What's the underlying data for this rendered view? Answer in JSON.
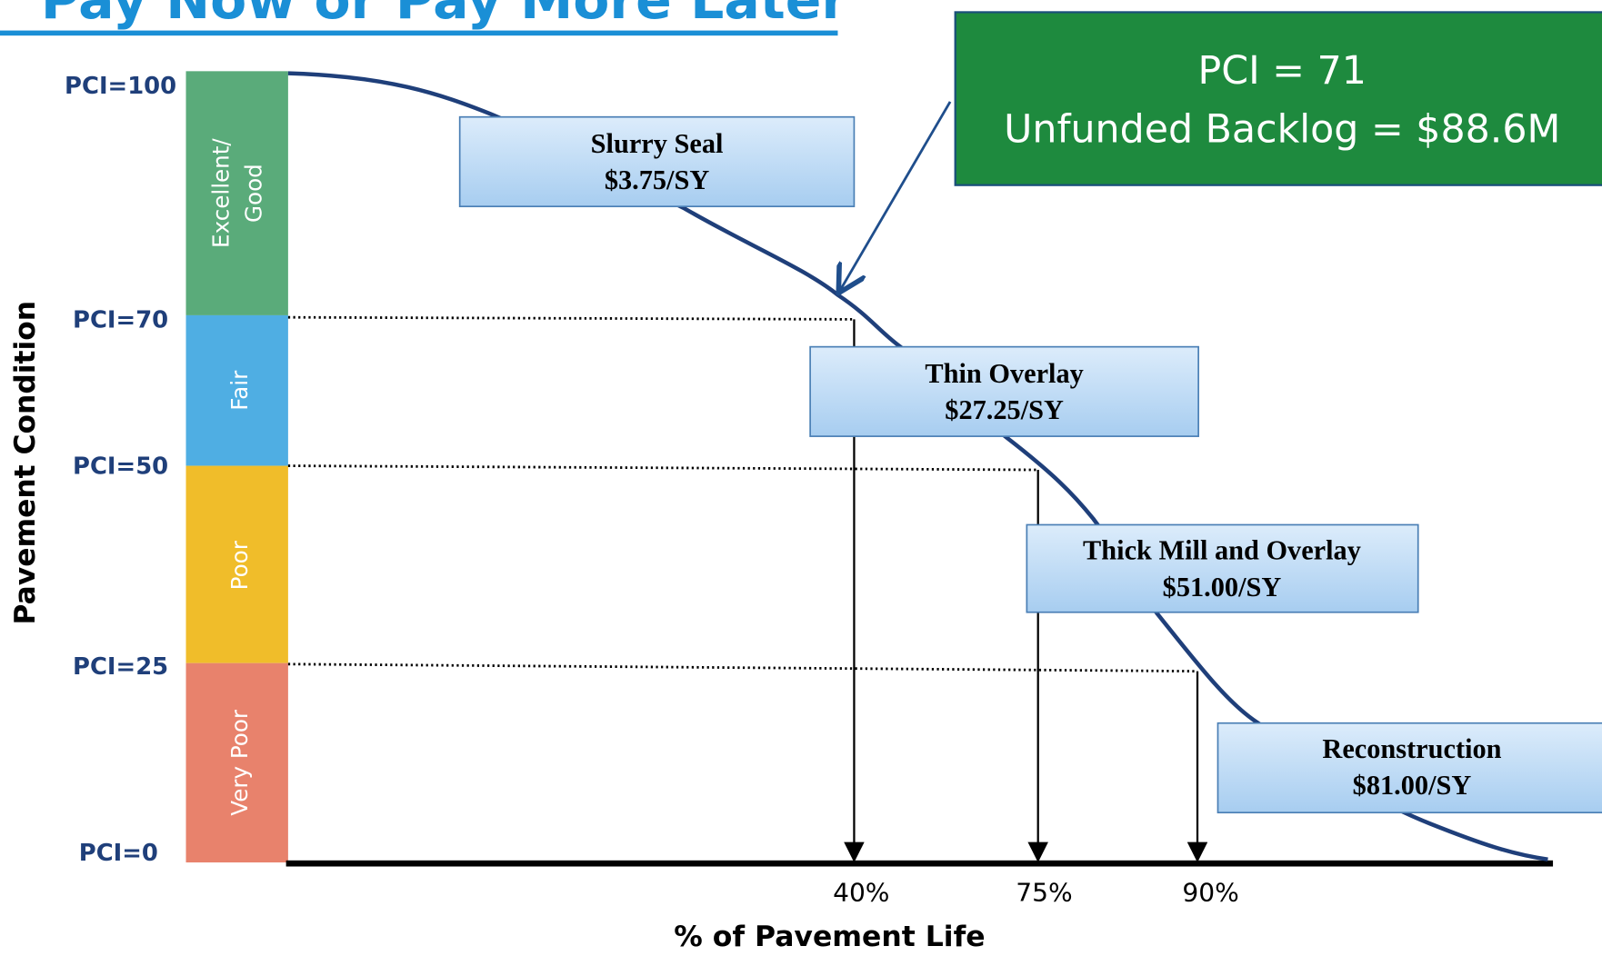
{
  "header": {
    "title": "Pay Now or Pay More Later"
  },
  "axis": {
    "y_title": "Pavement Condition",
    "x_title": "% of Pavement Life",
    "y_labels": [
      "PCI=100",
      "PCI=70",
      "PCI=50",
      "PCI=25",
      "PCI=0"
    ],
    "x_labels": [
      "40%",
      "75%",
      "90%"
    ]
  },
  "bands": [
    "Excellent/",
    "Good",
    "Fair",
    "Poor",
    "Very Poor"
  ],
  "treatments": [
    {
      "name": "Slurry Seal",
      "cost": "$3.75/SY"
    },
    {
      "name": "Thin Overlay",
      "cost": "$27.25/SY"
    },
    {
      "name": "Thick Mill and Overlay",
      "cost": "$51.00/SY"
    },
    {
      "name": "Reconstruction",
      "cost": "$81.00/SY"
    }
  ],
  "callout": {
    "line1": "PCI = 71",
    "line2": "Unfunded Backlog = $88.6M"
  }
}
